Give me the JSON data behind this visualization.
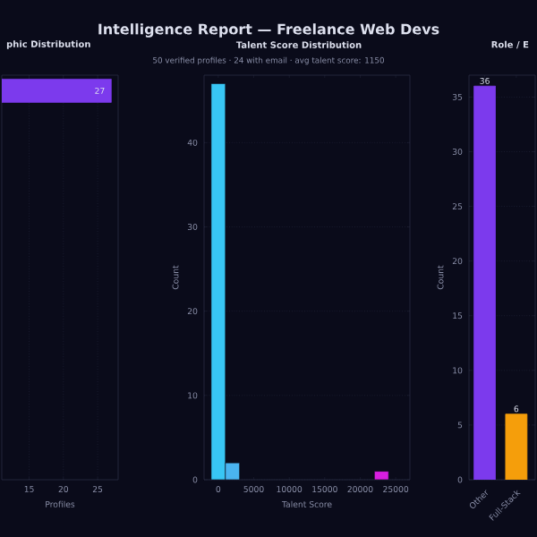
{
  "chart_data": [
    {
      "type": "other",
      "title": "Intelligence Report — Freelance Web Devs",
      "subtitle": "50 verified profiles · 24 with email · avg talent score: 1150"
    },
    {
      "type": "bar",
      "orientation": "horizontal",
      "title": "phic Distribution",
      "xlabel": "Profiles",
      "categories": [
        null
      ],
      "values": [
        27
      ],
      "color": "#7c3aed",
      "data_labels": true,
      "xlim": [
        11,
        28
      ],
      "xticks": [
        15,
        20,
        25
      ],
      "grid": "x",
      "tick_labels": "x"
    },
    {
      "type": "histogram",
      "title": "Talent Score Distribution",
      "xlabel": "Talent Score",
      "ylabel": "Count",
      "bins": [
        -1000,
        1000,
        3000,
        22000,
        24000
      ],
      "values": [
        47,
        2,
        0,
        1
      ],
      "colors": [
        "#38c6f4",
        "#4ab4f0",
        "#38c6f4",
        "#d91ee0"
      ],
      "xlim": [
        -2000,
        27000
      ],
      "xticks": [
        0,
        5000,
        10000,
        15000,
        20000,
        25000
      ],
      "ylim": [
        0,
        48
      ],
      "yticks": [
        0,
        10,
        20,
        30,
        40
      ],
      "grid": "y"
    },
    {
      "type": "bar",
      "title": "Role / E",
      "ylabel": "Count",
      "categories": [
        "Other",
        "Full-Stack"
      ],
      "values": [
        36,
        6
      ],
      "colors": [
        "#7c3aed",
        "#f59e0b"
      ],
      "data_labels": true,
      "ylim": [
        0,
        37
      ],
      "yticks": [
        0,
        5,
        10,
        15,
        20,
        25,
        30,
        35
      ],
      "grid": "y"
    }
  ]
}
